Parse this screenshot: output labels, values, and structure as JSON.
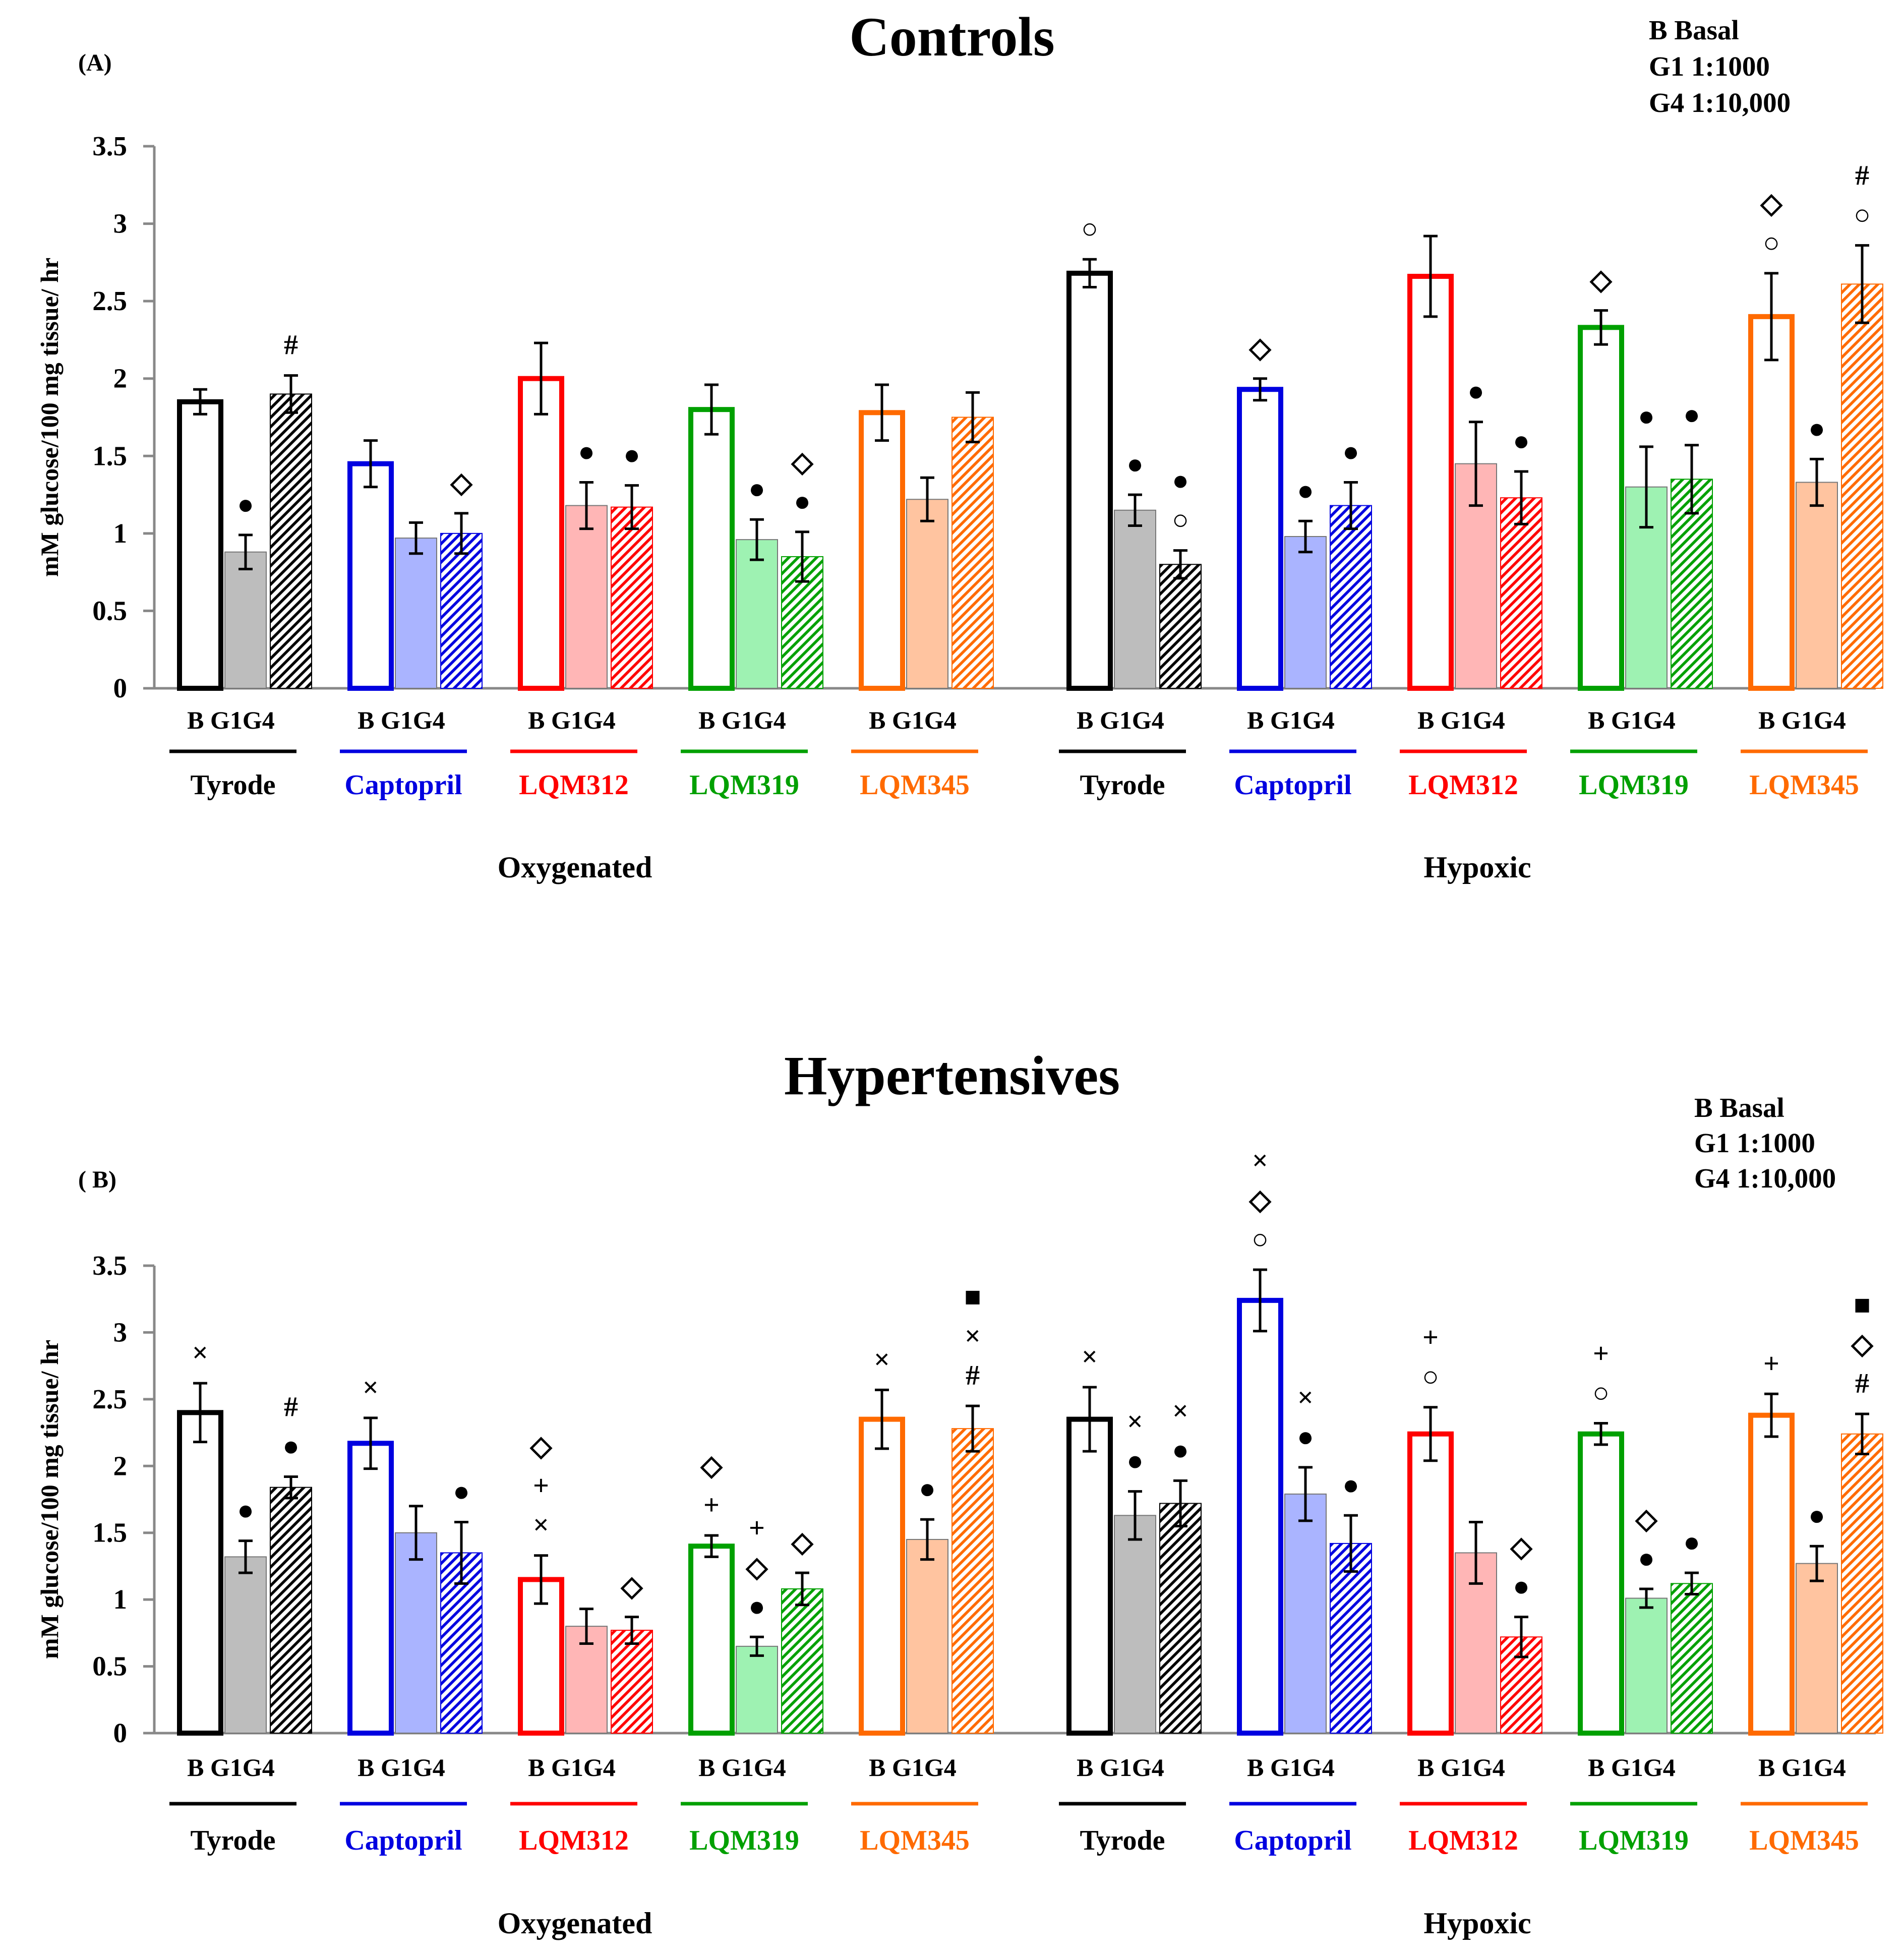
{
  "conditions": [
    "B",
    "G1",
    "G4"
  ],
  "cond_label_text": "B  G1G4",
  "drugs": [
    {
      "name": "Tyrode",
      "color": "#000000",
      "fill": "#bdbdbd"
    },
    {
      "name": "Captopril",
      "color": "#0000e0",
      "fill": "#aab4ff"
    },
    {
      "name": "LQM312",
      "color": "#ff0000",
      "fill": "#ffb6b6"
    },
    {
      "name": "LQM319",
      "color": "#00a000",
      "fill": "#9ef2b2"
    },
    {
      "name": "LQM345",
      "color": "#ff6a00",
      "fill": "#ffc4a0"
    }
  ],
  "chart_data": [
    {
      "type": "bar",
      "panel_label": "(A)",
      "title": "Controls",
      "legend": [
        "B Basal",
        "G1 1:1000",
        "G4 1:10,000"
      ],
      "ylabel": "mM glucose/100 mg tissue/ hr",
      "ylim": [
        0,
        3.5
      ],
      "yticks": [
        0,
        0.5,
        1,
        1.5,
        2,
        2.5,
        3,
        3.5
      ],
      "ytick_labels": [
        "0",
        "0.5",
        "1",
        "1.5",
        "2",
        "2.5",
        "3",
        "3.5"
      ],
      "groups": [
        {
          "name": "Oxygenated",
          "series": [
            {
              "drug": "Tyrode",
              "values": [
                1.85,
                0.88,
                1.9
              ],
              "errors": [
                0.08,
                0.11,
                0.12
              ],
              "marks": [
                [],
                [
                  "●"
                ],
                [
                  "#"
                ]
              ]
            },
            {
              "drug": "Captopril",
              "values": [
                1.45,
                0.97,
                1.0
              ],
              "errors": [
                0.15,
                0.1,
                0.13
              ],
              "marks": [
                [],
                [],
                [
                  "◇"
                ]
              ]
            },
            {
              "drug": "LQM312",
              "values": [
                2.0,
                1.18,
                1.17
              ],
              "errors": [
                0.23,
                0.15,
                0.14
              ],
              "marks": [
                [],
                [
                  "●"
                ],
                [
                  "●"
                ]
              ]
            },
            {
              "drug": "LQM319",
              "values": [
                1.8,
                0.96,
                0.85
              ],
              "errors": [
                0.16,
                0.13,
                0.16
              ],
              "marks": [
                [],
                [
                  "●"
                ],
                [
                  "●",
                  "◇"
                ]
              ]
            },
            {
              "drug": "LQM345",
              "values": [
                1.78,
                1.22,
                1.75
              ],
              "errors": [
                0.18,
                0.14,
                0.16
              ],
              "marks": [
                [],
                [],
                []
              ]
            }
          ]
        },
        {
          "name": "Hypoxic",
          "series": [
            {
              "drug": "Tyrode",
              "values": [
                2.68,
                1.15,
                0.8
              ],
              "errors": [
                0.09,
                0.1,
                0.09
              ],
              "marks": [
                [
                  "○"
                ],
                [
                  "●"
                ],
                [
                  "○",
                  "●"
                ]
              ]
            },
            {
              "drug": "Captopril",
              "values": [
                1.93,
                0.98,
                1.18
              ],
              "errors": [
                0.07,
                0.1,
                0.15
              ],
              "marks": [
                [
                  "◇"
                ],
                [
                  "●"
                ],
                [
                  "●"
                ]
              ]
            },
            {
              "drug": "LQM312",
              "values": [
                2.66,
                1.45,
                1.23
              ],
              "errors": [
                0.26,
                0.27,
                0.17
              ],
              "marks": [
                [],
                [
                  "●"
                ],
                [
                  "●"
                ]
              ]
            },
            {
              "drug": "LQM319",
              "values": [
                2.33,
                1.3,
                1.35
              ],
              "errors": [
                0.11,
                0.26,
                0.22
              ],
              "marks": [
                [
                  "◇"
                ],
                [
                  "●"
                ],
                [
                  "●"
                ]
              ]
            },
            {
              "drug": "LQM345",
              "values": [
                2.4,
                1.33,
                2.61
              ],
              "errors": [
                0.28,
                0.15,
                0.25
              ],
              "marks": [
                [
                  "○",
                  "◇"
                ],
                [
                  "●"
                ],
                [
                  "○",
                  "#"
                ]
              ]
            }
          ]
        }
      ]
    },
    {
      "type": "bar",
      "panel_label": "( B)",
      "title": "Hypertensives",
      "legend": [
        "B Basal",
        "G1 1:1000",
        "G4 1:10,000"
      ],
      "ylabel": "mM glucose/100 mg tissue/ hr",
      "ylim": [
        0,
        3.5
      ],
      "yticks": [
        0,
        0.5,
        1,
        1.5,
        2,
        2.5,
        3,
        3.5
      ],
      "ytick_labels": [
        "0",
        "0.5",
        "1",
        "1.5",
        "2",
        "2.5",
        "3",
        "3.5"
      ],
      "groups": [
        {
          "name": "Oxygenated",
          "series": [
            {
              "drug": "Tyrode",
              "values": [
                2.4,
                1.32,
                1.84
              ],
              "errors": [
                0.22,
                0.12,
                0.08
              ],
              "marks": [
                [
                  "×"
                ],
                [
                  "●"
                ],
                [
                  "●",
                  "#"
                ]
              ]
            },
            {
              "drug": "Captopril",
              "values": [
                2.17,
                1.5,
                1.35
              ],
              "errors": [
                0.19,
                0.2,
                0.23
              ],
              "marks": [
                [
                  "×"
                ],
                [],
                [
                  "●"
                ]
              ]
            },
            {
              "drug": "LQM312",
              "values": [
                1.15,
                0.8,
                0.77
              ],
              "errors": [
                0.18,
                0.13,
                0.1
              ],
              "marks": [
                [
                  "×",
                  "+",
                  "◇"
                ],
                [],
                [
                  "◇"
                ]
              ]
            },
            {
              "drug": "LQM319",
              "values": [
                1.4,
                0.65,
                1.08
              ],
              "errors": [
                0.08,
                0.07,
                0.12
              ],
              "marks": [
                [
                  "+",
                  "◇"
                ],
                [
                  "●",
                  "◇",
                  "+"
                ],
                [
                  "◇"
                ]
              ]
            },
            {
              "drug": "LQM345",
              "values": [
                2.35,
                1.45,
                2.28
              ],
              "errors": [
                0.22,
                0.15,
                0.17
              ],
              "marks": [
                [
                  "×"
                ],
                [
                  "●"
                ],
                [
                  "#",
                  "×",
                  "■"
                ]
              ]
            }
          ]
        },
        {
          "name": "Hypoxic",
          "series": [
            {
              "drug": "Tyrode",
              "values": [
                2.35,
                1.63,
                1.72
              ],
              "errors": [
                0.24,
                0.18,
                0.17
              ],
              "marks": [
                [
                  "×"
                ],
                [
                  "●",
                  "×"
                ],
                [
                  "●",
                  "×"
                ]
              ]
            },
            {
              "drug": "Captopril",
              "values": [
                3.24,
                1.79,
                1.42
              ],
              "errors": [
                0.23,
                0.2,
                0.21
              ],
              "marks": [
                [
                  "○",
                  "◇",
                  "×"
                ],
                [
                  "●",
                  "×"
                ],
                [
                  "●"
                ]
              ]
            },
            {
              "drug": "LQM312",
              "values": [
                2.24,
                1.35,
                0.72
              ],
              "errors": [
                0.2,
                0.23,
                0.15
              ],
              "marks": [
                [
                  "○",
                  "+"
                ],
                [],
                [
                  "●",
                  "◇"
                ]
              ]
            },
            {
              "drug": "LQM319",
              "values": [
                2.24,
                1.01,
                1.12
              ],
              "errors": [
                0.08,
                0.07,
                0.08
              ],
              "marks": [
                [
                  "○",
                  "+"
                ],
                [
                  "●",
                  "◇"
                ],
                [
                  "●"
                ]
              ]
            },
            {
              "drug": "LQM345",
              "values": [
                2.38,
                1.27,
                2.24
              ],
              "errors": [
                0.16,
                0.13,
                0.15
              ],
              "marks": [
                [
                  "+"
                ],
                [
                  "●"
                ],
                [
                  "#",
                  "◇",
                  "■"
                ]
              ]
            }
          ]
        }
      ]
    }
  ]
}
